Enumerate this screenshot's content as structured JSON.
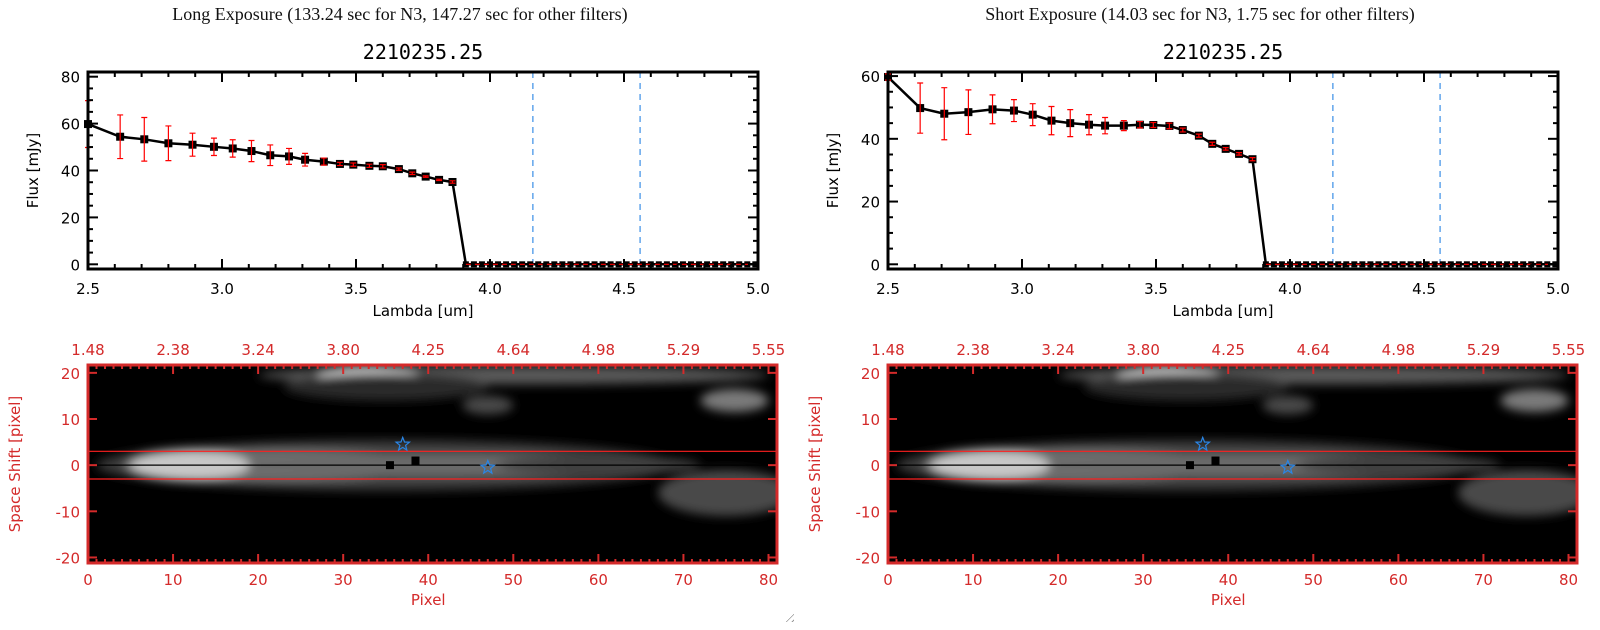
{
  "colors": {
    "axis_spectrum": "#000000",
    "axis_image": "#d42a2a",
    "error_bar": "#ff0000",
    "marker": "#000000",
    "filter_line": "#3a8ee6",
    "star": "#2a86e6",
    "aperture_line": "#ff2020"
  },
  "chart_data": [
    {
      "type": "line",
      "title": "Long Exposure (133.24 sec for N3, 147.27 sec for other filters)",
      "subtitle": "2210235.25",
      "xlabel": "Lambda [um]",
      "ylabel": "Flux [mJy]",
      "xlim": [
        2.5,
        5.0
      ],
      "ylim": [
        -2,
        82
      ],
      "xticks": [
        "2.5",
        "3.0",
        "3.5",
        "4.0",
        "4.5",
        "5.0"
      ],
      "yticks": [
        "0",
        "20",
        "40",
        "60",
        "80"
      ],
      "vlines": [
        4.16,
        4.56
      ],
      "zero_line_from": 3.91,
      "series": [
        {
          "x": [
            2.5,
            2.62,
            2.71,
            2.8,
            2.89,
            2.97,
            3.04,
            3.11,
            3.18,
            3.25,
            3.31,
            3.38,
            3.44,
            3.49,
            3.55,
            3.6,
            3.66,
            3.71,
            3.76,
            3.81,
            3.86,
            3.91,
            3.94,
            3.97,
            4.0,
            4.03,
            4.06,
            4.09,
            4.12,
            4.15,
            4.18,
            4.21,
            4.24,
            4.27,
            4.3,
            4.33,
            4.36,
            4.39,
            4.42,
            4.45,
            4.48,
            4.51,
            4.54,
            4.57,
            4.6,
            4.63,
            4.66,
            4.69,
            4.72,
            4.75,
            4.78,
            4.81,
            4.84,
            4.87,
            4.9,
            4.93,
            4.96,
            4.99
          ],
          "y": [
            59.8,
            54.4,
            53.3,
            51.6,
            51.0,
            50.1,
            49.4,
            48.3,
            46.5,
            46.0,
            44.6,
            43.8,
            42.8,
            42.5,
            42.0,
            41.8,
            40.6,
            38.8,
            37.4,
            36.0,
            35.1,
            0,
            0,
            0,
            0,
            0,
            0,
            0,
            0,
            0,
            0,
            0,
            0,
            0,
            0,
            0,
            0,
            0,
            0,
            0,
            0,
            0,
            0,
            0,
            0,
            0,
            0,
            0,
            0,
            0,
            0,
            0,
            0,
            0,
            0,
            0,
            0,
            0
          ],
          "yerr": [
            10,
            9.3,
            9.3,
            7.4,
            4.9,
            3.7,
            3.7,
            4.5,
            4.4,
            3.4,
            2.7,
            1.5,
            0.7,
            0.7,
            0.7,
            0.7,
            0.5,
            0.5,
            0.3,
            0.3,
            0.5,
            0,
            0,
            0,
            0,
            0,
            0,
            0,
            0,
            0,
            0,
            0,
            0,
            0,
            0,
            0,
            0,
            0,
            0,
            0,
            0,
            0,
            0,
            0,
            0,
            0,
            0,
            0,
            0,
            0,
            0,
            0,
            0,
            0,
            0,
            0,
            0,
            0
          ]
        }
      ]
    },
    {
      "type": "line",
      "title": "Short Exposure (14.03 sec for N3, 1.75 sec for other filters)",
      "subtitle": "2210235.25",
      "xlabel": "Lambda [um]",
      "ylabel": "Flux [mJy]",
      "xlim": [
        2.5,
        5.0
      ],
      "ylim": [
        -1.5,
        61.3
      ],
      "xticks": [
        "2.5",
        "3.0",
        "3.5",
        "4.0",
        "4.5",
        "5.0"
      ],
      "yticks": [
        "0",
        "20",
        "40",
        "60"
      ],
      "vlines": [
        4.16,
        4.56
      ],
      "zero_line_from": 3.91,
      "series": [
        {
          "x": [
            2.5,
            2.62,
            2.71,
            2.8,
            2.89,
            2.97,
            3.04,
            3.11,
            3.18,
            3.25,
            3.31,
            3.38,
            3.44,
            3.49,
            3.55,
            3.6,
            3.66,
            3.71,
            3.76,
            3.81,
            3.86,
            3.91,
            3.94,
            3.97,
            4.0,
            4.03,
            4.06,
            4.09,
            4.12,
            4.15,
            4.18,
            4.21,
            4.24,
            4.27,
            4.3,
            4.33,
            4.36,
            4.39,
            4.42,
            4.45,
            4.48,
            4.51,
            4.54,
            4.57,
            4.6,
            4.63,
            4.66,
            4.69,
            4.72,
            4.75,
            4.78,
            4.81,
            4.84,
            4.87,
            4.9,
            4.93,
            4.96,
            4.99
          ],
          "y": [
            59.7,
            49.8,
            48.0,
            48.5,
            49.4,
            49.0,
            47.7,
            45.8,
            45.0,
            44.5,
            44.2,
            44.2,
            44.5,
            44.4,
            44.1,
            42.8,
            41.0,
            38.4,
            36.8,
            35.2,
            33.5,
            0,
            0,
            0,
            0,
            0,
            0,
            0,
            0,
            0,
            0,
            0,
            0,
            0,
            0,
            0,
            0,
            0,
            0,
            0,
            0,
            0,
            0,
            0,
            0,
            0,
            0,
            0,
            0,
            0,
            0,
            0,
            0,
            0,
            0,
            0,
            0,
            0
          ],
          "yerr": [
            1,
            8,
            8.3,
            7.1,
            4.6,
            3.5,
            3.5,
            4.5,
            4.3,
            3.2,
            2.6,
            1.6,
            1.0,
            0.8,
            0.9,
            0.6,
            0.5,
            0.5,
            0.4,
            0.4,
            0.5,
            0,
            0,
            0,
            0,
            0,
            0,
            0,
            0,
            0,
            0,
            0,
            0,
            0,
            0,
            0,
            0,
            0,
            0,
            0,
            0,
            0,
            0,
            0,
            0,
            0,
            0,
            0,
            0,
            0,
            0,
            0,
            0,
            0,
            0,
            0,
            0,
            0
          ]
        }
      ]
    },
    {
      "type": "heatmap",
      "xlabel": "Pixel",
      "ylabel": "Space Shift [pixel]",
      "xlim": [
        0,
        81
      ],
      "ylim": [
        -21.2,
        21.7
      ],
      "xticks": [
        "0",
        "10",
        "20",
        "30",
        "40",
        "50",
        "60",
        "70",
        "80"
      ],
      "yticks": [
        "-20",
        "-10",
        "0",
        "10",
        "20"
      ],
      "top_xticks": [
        "1.48",
        "2.38",
        "3.24",
        "3.80",
        "4.25",
        "4.64",
        "4.98",
        "5.29",
        "5.55"
      ],
      "aperture_lines": [
        3,
        -3
      ],
      "center_line": 0,
      "squares": [
        [
          35.5,
          0
        ],
        [
          38.5,
          1
        ]
      ],
      "stars": [
        [
          37,
          4.5
        ],
        [
          47,
          -0.5
        ]
      ],
      "colormap": "grayscale"
    },
    {
      "type": "heatmap",
      "xlabel": "Pixel",
      "ylabel": "Space Shift [pixel]",
      "xlim": [
        0,
        81
      ],
      "ylim": [
        -21.2,
        21.7
      ],
      "xticks": [
        "0",
        "10",
        "20",
        "30",
        "40",
        "50",
        "60",
        "70",
        "80"
      ],
      "yticks": [
        "-20",
        "-10",
        "0",
        "10",
        "20"
      ],
      "top_xticks": [
        "1.48",
        "2.38",
        "3.24",
        "3.80",
        "4.25",
        "4.64",
        "4.98",
        "5.29",
        "5.55"
      ],
      "aperture_lines": [
        3,
        -3
      ],
      "center_line": 0,
      "squares": [
        [
          35.5,
          0
        ],
        [
          38.5,
          1
        ]
      ],
      "stars": [
        [
          37,
          4.5
        ],
        [
          47,
          -0.5
        ]
      ],
      "colormap": "grayscale"
    }
  ]
}
